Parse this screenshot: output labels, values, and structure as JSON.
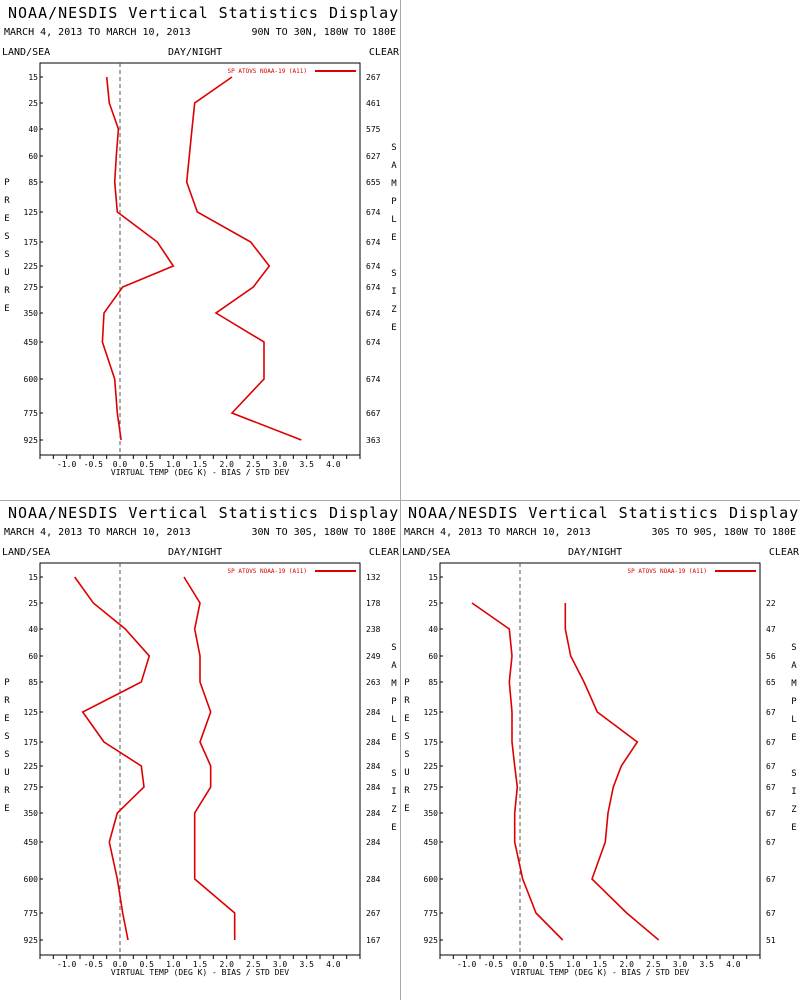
{
  "panels": [
    {
      "title": "NOAA/NESDIS Vertical Statistics Display",
      "dates": "MARCH 4, 2013 TO MARCH 10, 2013",
      "region": "90N TO 30N, 180W TO 180E",
      "left_label": "LAND/SEA",
      "center_label": "DAY/NIGHT",
      "right_label": "CLEAR"
    },
    {
      "title": "NOAA/NESDIS Vertical Statistics Display",
      "dates": "MARCH 4, 2013 TO MARCH 10, 2013",
      "region": "30N TO 30S, 180W TO 180E",
      "left_label": "LAND/SEA",
      "center_label": "DAY/NIGHT",
      "right_label": "CLEAR"
    },
    {
      "title": "NOAA/NESDIS Vertical Statistics Display",
      "dates": "MARCH 4, 2013 TO MARCH 10, 2013",
      "region": "30S TO 90S, 180W TO 180E",
      "left_label": "LAND/SEA",
      "center_label": "DAY/NIGHT",
      "right_label": "CLEAR"
    }
  ],
  "colors": {
    "series": "#dd0000",
    "axis": "#000000",
    "zero_line": "#555555"
  },
  "chart_data": [
    {
      "type": "line",
      "xlabel": "VIRTUAL TEMP (DEG K) - BIAS / STD DEV",
      "ylabel": "PRESSURE",
      "y2label": "SAMPLE SIZE",
      "xlim": [
        -1.5,
        4.5
      ],
      "xticks": [
        "-1.0",
        "-0.5",
        "0.0",
        "0.5",
        "1.0",
        "1.5",
        "2.0",
        "2.5",
        "3.0",
        "3.5",
        "4.0"
      ],
      "y": [
        "15",
        "25",
        "40",
        "60",
        "85",
        "125",
        "175",
        "225",
        "275",
        "350",
        "450",
        "600",
        "775",
        "925"
      ],
      "legend": "SP ATOVS NOAA-19 (A11)",
      "legend_position": "top-right",
      "series": [
        {
          "name": "bias",
          "values": [
            -0.25,
            -0.2,
            -0.03,
            -0.07,
            -0.1,
            -0.05,
            0.7,
            1.0,
            0.05,
            -0.3,
            -0.33,
            -0.1,
            -0.05,
            0.02
          ]
        },
        {
          "name": "std_dev",
          "values": [
            2.1,
            1.4,
            1.35,
            1.3,
            1.25,
            1.45,
            2.45,
            2.8,
            2.5,
            1.8,
            2.7,
            2.7,
            2.1,
            3.4
          ]
        }
      ],
      "sample_size": [
        "267",
        "461",
        "575",
        "627",
        "655",
        "674",
        "674",
        "674",
        "674",
        "674",
        "674",
        "674",
        "667",
        "363"
      ]
    },
    {
      "type": "line",
      "xlabel": "VIRTUAL TEMP (DEG K) - BIAS / STD DEV",
      "ylabel": "PRESSURE",
      "y2label": "SAMPLE SIZE",
      "xlim": [
        -1.5,
        4.5
      ],
      "xticks": [
        "-1.0",
        "-0.5",
        "0.0",
        "0.5",
        "1.0",
        "1.5",
        "2.0",
        "2.5",
        "3.0",
        "3.5",
        "4.0"
      ],
      "y": [
        "15",
        "25",
        "40",
        "60",
        "85",
        "125",
        "175",
        "225",
        "275",
        "350",
        "450",
        "600",
        "775",
        "925"
      ],
      "legend": "SP ATOVS NOAA-19 (A11)",
      "legend_position": "top-right",
      "series": [
        {
          "name": "bias",
          "values": [
            -0.85,
            -0.5,
            0.1,
            0.55,
            0.4,
            -0.7,
            -0.3,
            0.4,
            0.45,
            -0.05,
            -0.2,
            -0.05,
            0.05,
            0.15
          ]
        },
        {
          "name": "std_dev",
          "values": [
            1.2,
            1.5,
            1.4,
            1.5,
            1.5,
            1.7,
            1.5,
            1.7,
            1.7,
            1.4,
            1.4,
            1.4,
            2.15,
            2.15
          ]
        }
      ],
      "sample_size": [
        "132",
        "178",
        "238",
        "249",
        "263",
        "284",
        "284",
        "284",
        "284",
        "284",
        "284",
        "284",
        "267",
        "167"
      ]
    },
    {
      "type": "line",
      "xlabel": "VIRTUAL TEMP (DEG K) - BIAS / STD DEV",
      "ylabel": "PRESSURE",
      "y2label": "SAMPLE SIZE",
      "xlim": [
        -1.5,
        4.5
      ],
      "xticks": [
        "-1.0",
        "-0.5",
        "0.0",
        "0.5",
        "1.0",
        "1.5",
        "2.0",
        "2.5",
        "3.0",
        "3.5",
        "4.0"
      ],
      "y": [
        "15",
        "25",
        "40",
        "60",
        "85",
        "125",
        "175",
        "225",
        "275",
        "350",
        "450",
        "600",
        "775",
        "925"
      ],
      "legend": "SP ATOVS NOAA-19 (A11)",
      "legend_position": "top-right",
      "series": [
        {
          "name": "bias",
          "values": [
            null,
            -0.9,
            -0.2,
            -0.15,
            -0.2,
            -0.15,
            -0.15,
            -0.1,
            -0.05,
            -0.1,
            -0.1,
            0.05,
            0.3,
            0.8
          ]
        },
        {
          "name": "std_dev",
          "values": [
            null,
            0.85,
            0.85,
            0.95,
            1.2,
            1.45,
            2.2,
            1.9,
            1.75,
            1.65,
            1.6,
            1.35,
            2.0,
            2.6
          ]
        }
      ],
      "sample_size": [
        "",
        "22",
        "47",
        "56",
        "65",
        "67",
        "67",
        "67",
        "67",
        "67",
        "67",
        "67",
        "67",
        "51"
      ]
    }
  ]
}
